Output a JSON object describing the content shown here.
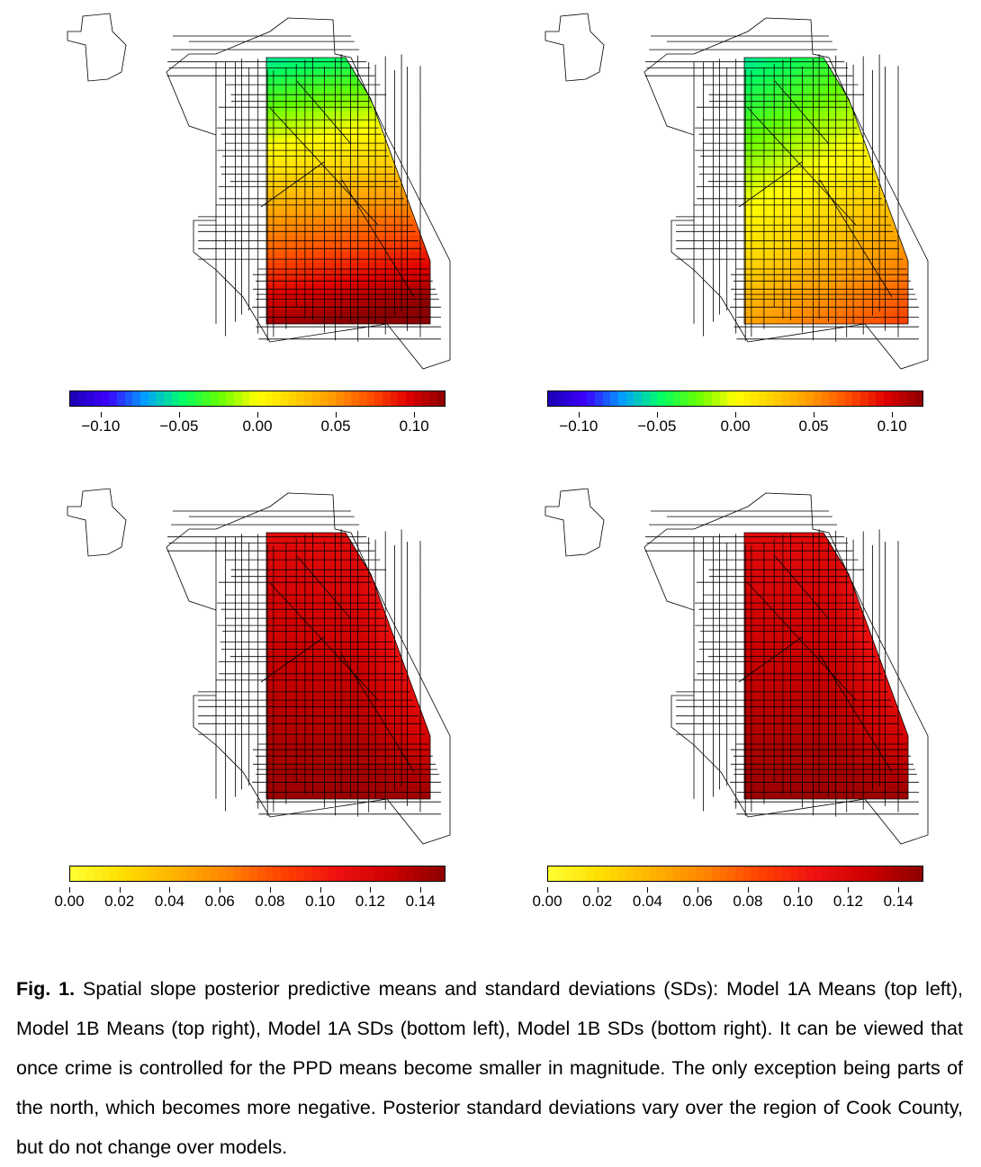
{
  "panels": [
    {
      "id": "model-1a-means",
      "scale": "means",
      "field": "means1A"
    },
    {
      "id": "model-1b-means",
      "scale": "means",
      "field": "means1B"
    },
    {
      "id": "model-1a-sds",
      "scale": "sds",
      "field": "sds"
    },
    {
      "id": "model-1b-sds",
      "scale": "sds",
      "field": "sds"
    }
  ],
  "colorbars": {
    "means": {
      "range": [
        -0.12,
        0.12
      ],
      "tick_values": [
        -0.1,
        -0.05,
        0.0,
        0.05,
        0.1
      ],
      "tick_labels": [
        "−0.10",
        "−0.05",
        "0.00",
        "0.05",
        "0.10"
      ],
      "palette": [
        "#1a00b0",
        "#3d00ff",
        "#00a0ff",
        "#00ff66",
        "#66ff00",
        "#ffff00",
        "#ffd000",
        "#ff9a00",
        "#ff5000",
        "#e00000",
        "#8b0000"
      ]
    },
    "sds": {
      "range": [
        0.0,
        0.15
      ],
      "tick_values": [
        0.0,
        0.02,
        0.04,
        0.06,
        0.08,
        0.1,
        0.12,
        0.14
      ],
      "tick_labels": [
        "0.00",
        "0.02",
        "0.04",
        "0.06",
        "0.08",
        "0.10",
        "0.12",
        "0.14"
      ],
      "palette": [
        "#ffff33",
        "#ffdd00",
        "#ffb000",
        "#ff8000",
        "#ff4000",
        "#ee1111",
        "#cc0000",
        "#8b0000"
      ]
    }
  },
  "caption": {
    "label": "Fig. 1.",
    "text": " Spatial slope posterior predictive means and standard deviations (SDs): Model 1A Means (top left), Model 1B Means (top right), Model 1A SDs (bottom left), Model 1B SDs (bottom right). It can be viewed that once crime is controlled for the PPD means become smaller in magnitude. The only exception being parts of the north, which becomes more negative.  Posterior standard deviations vary over the region of Cook County, but do not change over models."
  }
}
